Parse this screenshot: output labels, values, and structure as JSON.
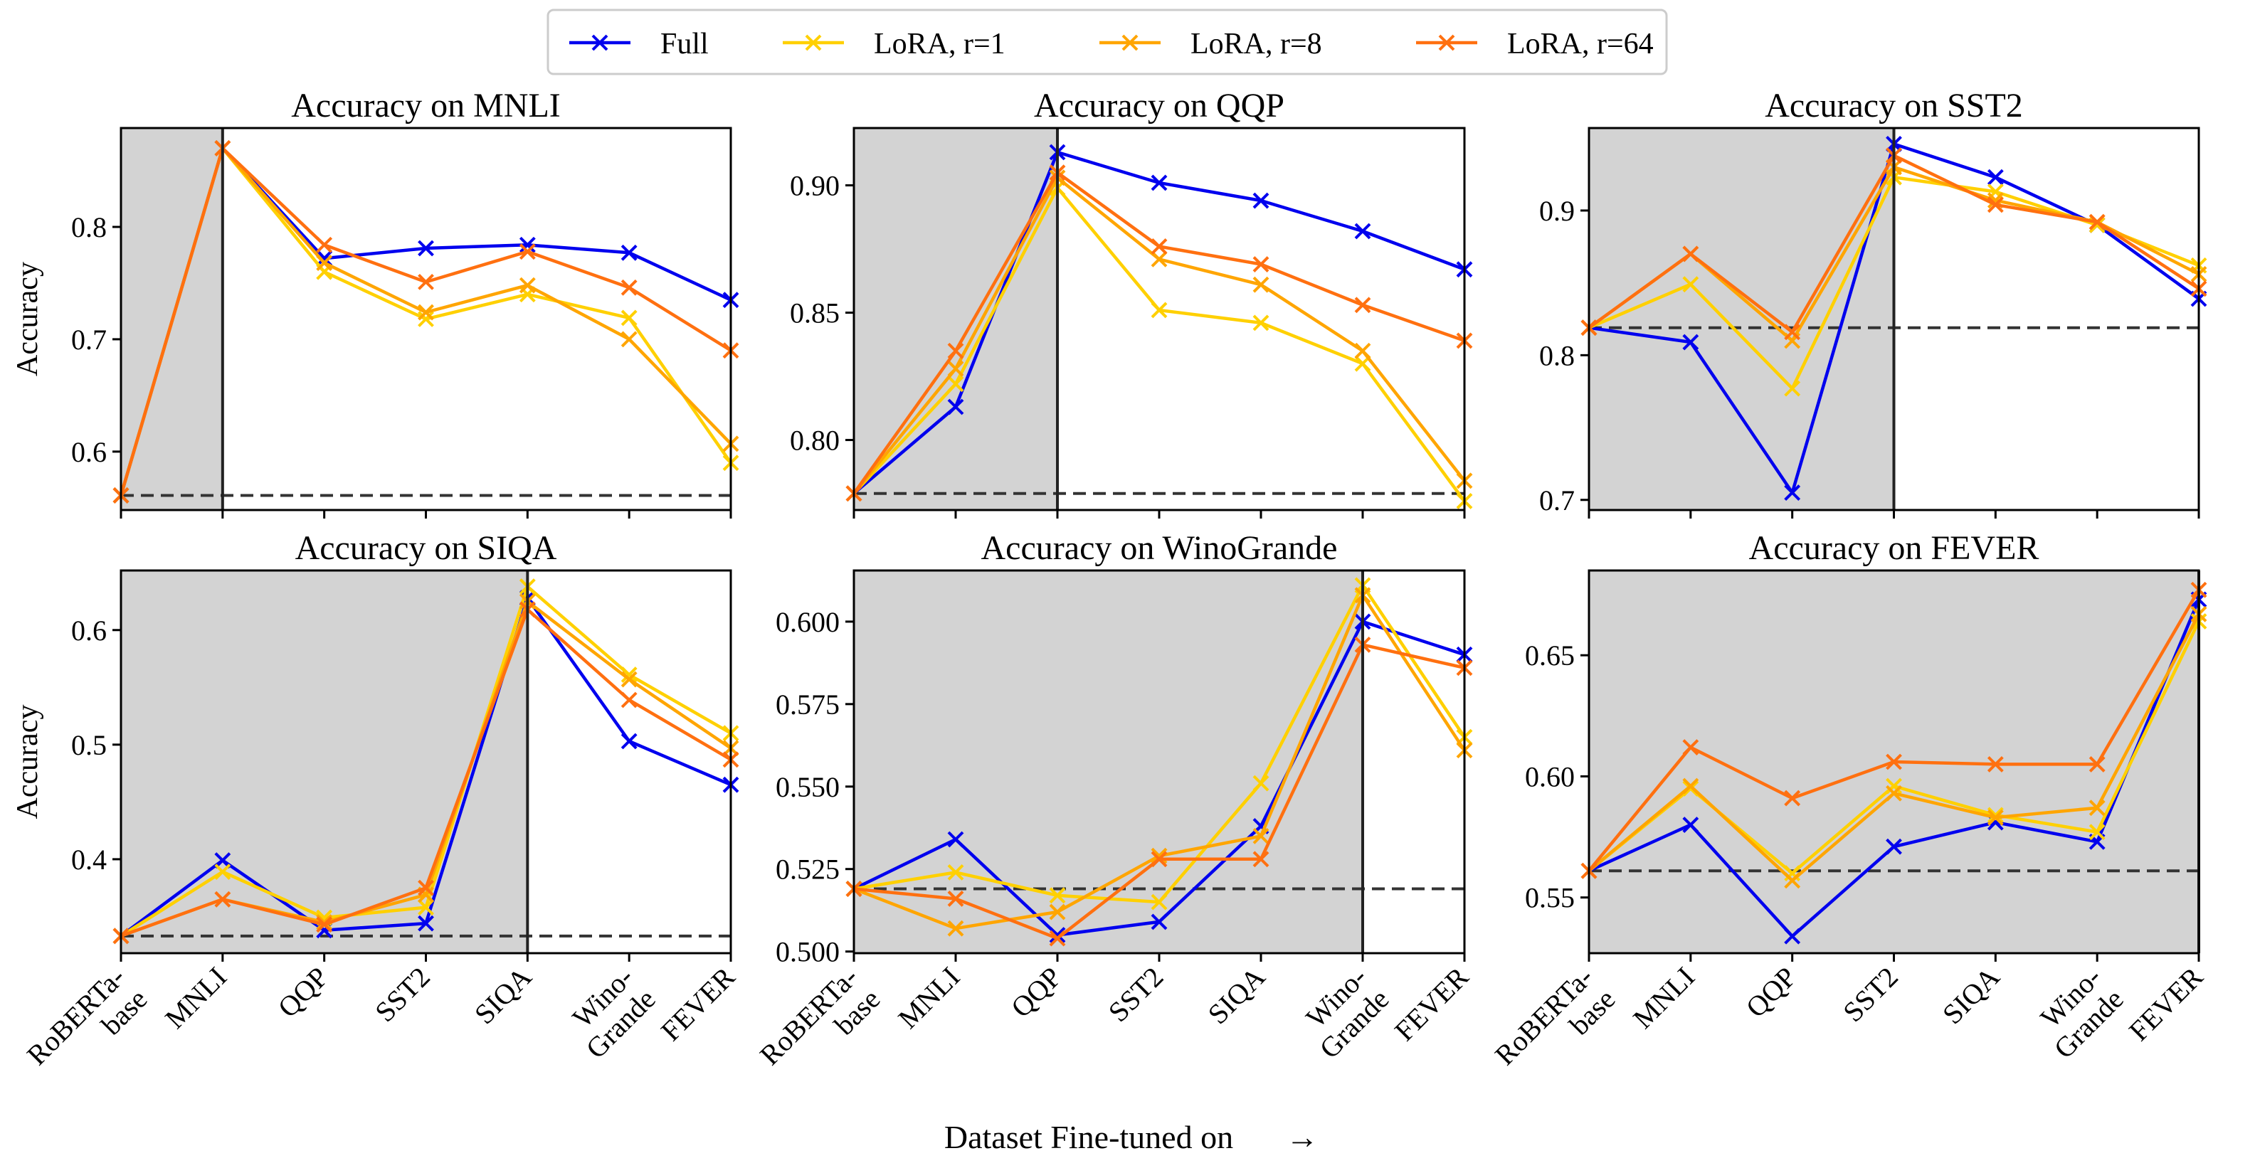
{
  "figure": {
    "xlabel": "Dataset Fine-tuned on",
    "arrow": "→",
    "ylabel": "Accuracy"
  },
  "legend": {
    "items": [
      {
        "label": "Full",
        "color": "#0000ee"
      },
      {
        "label": "LoRA, r=1",
        "color": "#ffd000"
      },
      {
        "label": "LoRA, r=8",
        "color": "#ffa500"
      },
      {
        "label": "LoRA, r=64",
        "color": "#ff7010"
      }
    ]
  },
  "chart_data": [
    {
      "type": "line",
      "title": "Accuracy on MNLI",
      "ylabel": "Accuracy",
      "xlabel": "Dataset Fine-tuned on",
      "categories": [
        "RoBERTa-\nbase",
        "MNLI",
        "QQP",
        "SST2",
        "SIQA",
        "Wino-\nGrande",
        "FEVER"
      ],
      "ylim": [
        0.548,
        0.888
      ],
      "yticks": [
        0.6,
        0.7,
        0.8
      ],
      "baseline": 0.561,
      "shade_until": 1,
      "series": [
        {
          "name": "Full",
          "values": [
            0.561,
            0.87,
            0.772,
            0.781,
            0.784,
            0.777,
            0.735
          ]
        },
        {
          "name": "LoRA, r=1",
          "values": [
            0.561,
            0.87,
            0.76,
            0.718,
            0.74,
            0.719,
            0.59
          ]
        },
        {
          "name": "LoRA, r=8",
          "values": [
            0.561,
            0.87,
            0.768,
            0.724,
            0.748,
            0.7,
            0.607
          ]
        },
        {
          "name": "LoRA, r=64",
          "values": [
            0.561,
            0.87,
            0.784,
            0.751,
            0.778,
            0.746,
            0.69
          ]
        }
      ]
    },
    {
      "type": "line",
      "title": "Accuracy on QQP",
      "ylabel": "",
      "xlabel": "Dataset Fine-tuned on",
      "categories": [
        "RoBERTa-\nbase",
        "MNLI",
        "QQP",
        "SST2",
        "SIQA",
        "Wino-\nGrande",
        "FEVER"
      ],
      "ylim": [
        0.7725,
        0.9225
      ],
      "yticks": [
        0.8,
        0.85,
        0.9
      ],
      "baseline": 0.779,
      "shade_until": 2,
      "series": [
        {
          "name": "Full",
          "values": [
            0.779,
            0.813,
            0.913,
            0.901,
            0.894,
            0.882,
            0.867
          ]
        },
        {
          "name": "LoRA, r=1",
          "values": [
            0.779,
            0.822,
            0.899,
            0.851,
            0.846,
            0.83,
            0.776
          ]
        },
        {
          "name": "LoRA, r=8",
          "values": [
            0.779,
            0.828,
            0.903,
            0.871,
            0.861,
            0.835,
            0.784
          ]
        },
        {
          "name": "LoRA, r=64",
          "values": [
            0.779,
            0.835,
            0.905,
            0.876,
            0.869,
            0.853,
            0.839
          ]
        }
      ]
    },
    {
      "type": "line",
      "title": "Accuracy on SST2",
      "ylabel": "",
      "xlabel": "Dataset Fine-tuned on",
      "categories": [
        "RoBERTa-\nbase",
        "MNLI",
        "QQP",
        "SST2",
        "SIQA",
        "Wino-\nGrande",
        "FEVER"
      ],
      "ylim": [
        0.693,
        0.957
      ],
      "yticks": [
        0.7,
        0.8,
        0.9
      ],
      "baseline": 0.819,
      "shade_until": 3,
      "series": [
        {
          "name": "Full",
          "values": [
            0.819,
            0.809,
            0.705,
            0.946,
            0.923,
            0.89,
            0.839
          ]
        },
        {
          "name": "LoRA, r=1",
          "values": [
            0.819,
            0.849,
            0.777,
            0.923,
            0.913,
            0.89,
            0.862
          ]
        },
        {
          "name": "LoRA, r=8",
          "values": [
            0.819,
            0.87,
            0.81,
            0.93,
            0.907,
            0.892,
            0.856
          ]
        },
        {
          "name": "LoRA, r=64",
          "values": [
            0.819,
            0.87,
            0.816,
            0.938,
            0.904,
            0.892,
            0.846
          ]
        }
      ]
    },
    {
      "type": "line",
      "title": "Accuracy on SIQA",
      "ylabel": "Accuracy",
      "xlabel": "Dataset Fine-tuned on",
      "categories": [
        "RoBERTa-\nbase",
        "MNLI",
        "QQP",
        "SST2",
        "SIQA",
        "Wino-\nGrande",
        "FEVER"
      ],
      "ylim": [
        0.318,
        0.652
      ],
      "yticks": [
        0.4,
        0.5,
        0.6
      ],
      "baseline": 0.333,
      "shade_until": 4,
      "series": [
        {
          "name": "Full",
          "values": [
            0.333,
            0.399,
            0.338,
            0.344,
            0.628,
            0.503,
            0.465
          ]
        },
        {
          "name": "LoRA, r=1",
          "values": [
            0.333,
            0.389,
            0.349,
            0.358,
            0.638,
            0.561,
            0.51
          ]
        },
        {
          "name": "LoRA, r=8",
          "values": [
            0.333,
            0.365,
            0.345,
            0.369,
            0.625,
            0.557,
            0.497
          ]
        },
        {
          "name": "LoRA, r=64",
          "values": [
            0.333,
            0.365,
            0.343,
            0.375,
            0.618,
            0.539,
            0.487
          ]
        }
      ]
    },
    {
      "type": "line",
      "title": "Accuracy on WinoGrande",
      "ylabel": "",
      "xlabel": "Dataset Fine-tuned on",
      "categories": [
        "RoBERTa-\nbase",
        "MNLI",
        "QQP",
        "SST2",
        "SIQA",
        "Wino-\nGrande",
        "FEVER"
      ],
      "ylim": [
        0.4995,
        0.6155
      ],
      "yticks": [
        0.5,
        0.525,
        0.55,
        0.575,
        0.6
      ],
      "baseline": 0.519,
      "shade_until": 5,
      "series": [
        {
          "name": "Full",
          "values": [
            0.519,
            0.534,
            0.505,
            0.509,
            0.538,
            0.6,
            0.59
          ]
        },
        {
          "name": "LoRA, r=1",
          "values": [
            0.519,
            0.524,
            0.517,
            0.515,
            0.551,
            0.611,
            0.565
          ]
        },
        {
          "name": "LoRA, r=8",
          "values": [
            0.519,
            0.507,
            0.512,
            0.529,
            0.535,
            0.608,
            0.561
          ]
        },
        {
          "name": "LoRA, r=64",
          "values": [
            0.519,
            0.516,
            0.504,
            0.528,
            0.528,
            0.593,
            0.586
          ]
        }
      ]
    },
    {
      "type": "line",
      "title": "Accuracy on FEVER",
      "ylabel": "",
      "xlabel": "Dataset Fine-tuned on",
      "categories": [
        "RoBERTa-\nbase",
        "MNLI",
        "QQP",
        "SST2",
        "SIQA",
        "Wino-\nGrande",
        "FEVER"
      ],
      "ylim": [
        0.527,
        0.685
      ],
      "yticks": [
        0.55,
        0.6,
        0.65
      ],
      "baseline": 0.561,
      "shade_until": 6,
      "series": [
        {
          "name": "Full",
          "values": [
            0.561,
            0.58,
            0.534,
            0.571,
            0.581,
            0.573,
            0.673
          ]
        },
        {
          "name": "LoRA, r=1",
          "values": [
            0.561,
            0.595,
            0.56,
            0.596,
            0.584,
            0.577,
            0.664
          ]
        },
        {
          "name": "LoRA, r=8",
          "values": [
            0.561,
            0.596,
            0.557,
            0.593,
            0.583,
            0.587,
            0.667
          ]
        },
        {
          "name": "LoRA, r=64",
          "values": [
            0.561,
            0.612,
            0.591,
            0.606,
            0.605,
            0.605,
            0.677
          ]
        }
      ]
    }
  ]
}
